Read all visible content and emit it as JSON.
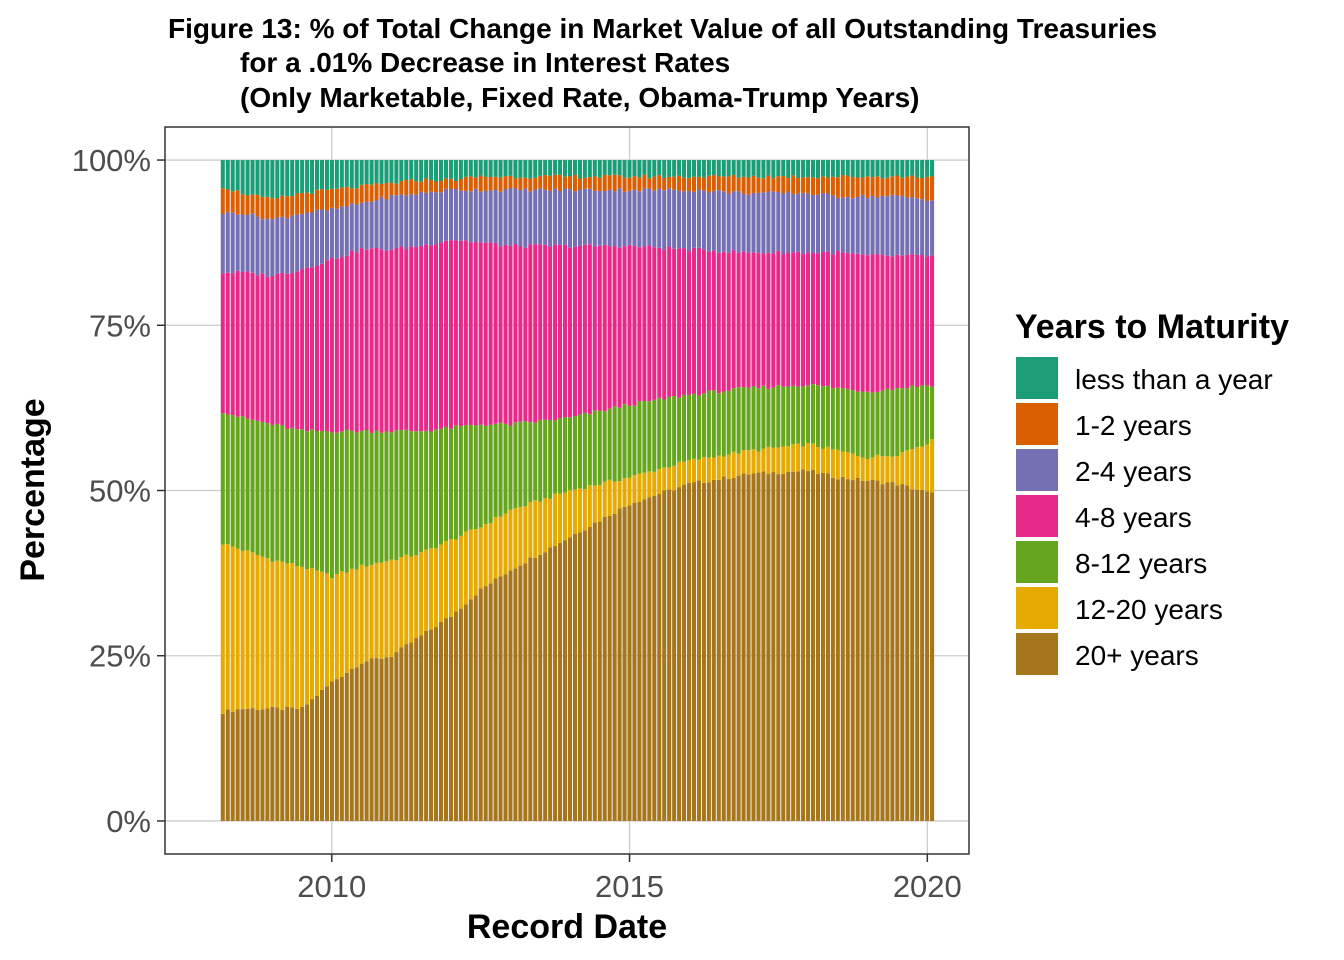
{
  "chart_data": {
    "type": "bar",
    "stacked": "percent",
    "title": [
      "Figure 13: % of Total Change in Market Value of all Outstanding Treasuries",
      "for a .01% Decrease in Interest Rates",
      "(Only Marketable, Fixed Rate, Obama-Trump Years)"
    ],
    "xlabel": "Record Date",
    "ylabel": "Percentage",
    "x_ticks": [
      "2010",
      "2015",
      "2020"
    ],
    "y_ticks": [
      "0%",
      "25%",
      "50%",
      "75%",
      "100%"
    ],
    "xlim": [
      2007.2,
      2020.7
    ],
    "ylim": [
      -0.05,
      1.05
    ],
    "grid": true,
    "legend_position": "right",
    "legend_title": "Years to Maturity",
    "x_start": 2008.17,
    "x_end": 2020.08,
    "bar_count": 144,
    "series": [
      {
        "name": "less than a year",
        "color": "#1B9E77"
      },
      {
        "name": "1-2 years",
        "color": "#D95F02"
      },
      {
        "name": "2-4 years",
        "color": "#7570B3"
      },
      {
        "name": "4-8 years",
        "color": "#E7298A"
      },
      {
        "name": "8-12 years",
        "color": "#66A61E"
      },
      {
        "name": "12-20 years",
        "color": "#E6AB02"
      },
      {
        "name": "20+ years",
        "color": "#A6761D"
      }
    ],
    "cumulative_boundaries_anchor_x": [
      2008.17,
      2008.5,
      2009.0,
      2009.5,
      2010.0,
      2010.5,
      2011.0,
      2011.5,
      2012.0,
      2012.5,
      2013.0,
      2014.0,
      2015.0,
      2016.0,
      2017.0,
      2018.0,
      2018.5,
      2019.0,
      2019.5,
      2020.08
    ],
    "cumulative_boundaries_note": "each series value = cumulative upper edge (0-1) from bottom; order: 20+ years, 12-20 years, 8-12 years, 4-8 years, 2-4 years, 1-2 years, less than a year",
    "cumulative_boundaries": [
      [
        0.165,
        0.17,
        0.17,
        0.17,
        0.21,
        0.24,
        0.25,
        0.28,
        0.31,
        0.35,
        0.38,
        0.43,
        0.48,
        0.51,
        0.525,
        0.53,
        0.52,
        0.515,
        0.51,
        0.495
      ],
      [
        0.42,
        0.41,
        0.395,
        0.385,
        0.37,
        0.385,
        0.395,
        0.405,
        0.425,
        0.445,
        0.47,
        0.5,
        0.52,
        0.545,
        0.56,
        0.57,
        0.56,
        0.55,
        0.555,
        0.575
      ],
      [
        0.62,
        0.61,
        0.6,
        0.59,
        0.59,
        0.59,
        0.59,
        0.59,
        0.595,
        0.6,
        0.6,
        0.61,
        0.63,
        0.645,
        0.655,
        0.66,
        0.655,
        0.65,
        0.655,
        0.66
      ],
      [
        0.83,
        0.83,
        0.825,
        0.835,
        0.85,
        0.865,
        0.865,
        0.87,
        0.88,
        0.875,
        0.87,
        0.87,
        0.87,
        0.865,
        0.86,
        0.86,
        0.86,
        0.855,
        0.855,
        0.855
      ],
      [
        0.92,
        0.92,
        0.91,
        0.92,
        0.925,
        0.935,
        0.945,
        0.95,
        0.955,
        0.955,
        0.955,
        0.955,
        0.955,
        0.955,
        0.95,
        0.95,
        0.945,
        0.945,
        0.945,
        0.94
      ],
      [
        0.96,
        0.95,
        0.94,
        0.95,
        0.955,
        0.96,
        0.965,
        0.97,
        0.97,
        0.975,
        0.975,
        0.975,
        0.975,
        0.975,
        0.975,
        0.975,
        0.975,
        0.975,
        0.975,
        0.975
      ],
      [
        1,
        1,
        1,
        1,
        1,
        1,
        1,
        1,
        1,
        1,
        1,
        1,
        1,
        1,
        1,
        1,
        1,
        1,
        1,
        1
      ]
    ]
  }
}
